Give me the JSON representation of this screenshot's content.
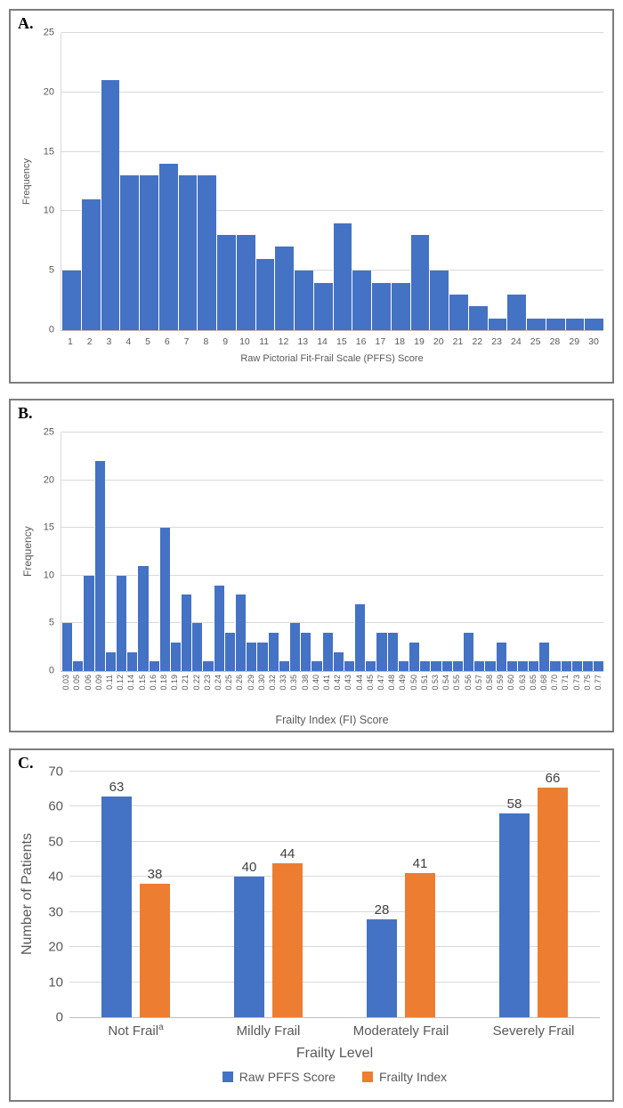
{
  "panels": {
    "a": {
      "label": "A."
    },
    "b": {
      "label": "B."
    },
    "c": {
      "label": "C."
    }
  },
  "colors": {
    "bar_blue": "#4472C4",
    "bar_orange": "#ED7D31",
    "gridline": "#D9D9D9",
    "axis_text": "#595959",
    "panel_border": "#7D7D7D"
  },
  "chart_data": [
    {
      "id": "chartA",
      "panel": "A",
      "type": "bar",
      "title": "",
      "xlabel": "Raw Pictorial Fit-Frail Scale (PFFS) Score",
      "ylabel": "Frequency",
      "ylim": [
        0,
        25
      ],
      "yticks": [
        0,
        5,
        10,
        15,
        20,
        25
      ],
      "grid": true,
      "legend_position": "none",
      "bar_color": "#4472C4",
      "tick_rotation": 0,
      "categories": [
        "1",
        "2",
        "3",
        "4",
        "5",
        "6",
        "7",
        "8",
        "9",
        "10",
        "11",
        "12",
        "13",
        "14",
        "15",
        "16",
        "17",
        "18",
        "19",
        "20",
        "21",
        "22",
        "23",
        "24",
        "25",
        "28",
        "29",
        "30"
      ],
      "values": [
        5,
        11,
        21,
        13,
        13,
        14,
        13,
        13,
        8,
        8,
        6,
        7,
        5,
        4,
        9,
        5,
        4,
        4,
        8,
        5,
        3,
        2,
        1,
        3,
        1,
        1,
        1,
        1
      ]
    },
    {
      "id": "chartB",
      "panel": "B",
      "type": "bar",
      "title": "",
      "xlabel": "Frailty Index (FI) Score",
      "ylabel": "Frequency",
      "ylim": [
        0,
        25
      ],
      "yticks": [
        0,
        5,
        10,
        15,
        20,
        25
      ],
      "grid": true,
      "legend_position": "none",
      "bar_color": "#4472C4",
      "tick_rotation": 90,
      "categories": [
        "0.03",
        "0.05",
        "0.06",
        "0.09",
        "0.11",
        "0.12",
        "0.14",
        "0.15",
        "0.16",
        "0.18",
        "0.19",
        "0.21",
        "0.22",
        "0.23",
        "0.24",
        "0.25",
        "0.26",
        "0.29",
        "0.30",
        "0.32",
        "0.33",
        "0.35",
        "0.38",
        "0.40",
        "0.41",
        "0.42",
        "0.43",
        "0.44",
        "0.45",
        "0.47",
        "0.48",
        "0.49",
        "0.50",
        "0.51",
        "0.53",
        "0.54",
        "0.55",
        "0.56",
        "0.57",
        "0.58",
        "0.59",
        "0.60",
        "0.63",
        "0.65",
        "0.68",
        "0.70",
        "0.71",
        "0.73",
        "0.75",
        "0.77"
      ],
      "values": [
        5,
        1,
        10,
        22,
        2,
        10,
        2,
        11,
        1,
        15,
        3,
        8,
        5,
        1,
        9,
        4,
        8,
        3,
        3,
        4,
        1,
        5,
        4,
        1,
        4,
        2,
        1,
        7,
        1,
        4,
        4,
        1,
        3,
        1,
        1,
        1,
        1,
        4,
        1,
        1,
        3,
        1,
        1,
        1,
        3,
        1,
        1,
        1,
        1,
        1
      ]
    },
    {
      "id": "chartC",
      "panel": "C",
      "type": "bar",
      "grouped": true,
      "title": "",
      "xlabel": "Frailty Level",
      "ylabel": "Number of Patients",
      "ylim": [
        0,
        70
      ],
      "yticks": [
        0,
        10,
        20,
        30,
        40,
        50,
        60,
        70
      ],
      "grid": true,
      "data_labels": true,
      "legend_position": "bottom",
      "tick_rotation": 0,
      "categories": [
        {
          "text": "Not Frail",
          "sup": "a"
        },
        {
          "text": "Mildly Frail"
        },
        {
          "text": "Moderately Frail"
        },
        {
          "text": "Severely Frail"
        }
      ],
      "series": [
        {
          "name": "Raw PFFS Score",
          "color": "#4472C4",
          "values": [
            63,
            40,
            28,
            58
          ]
        },
        {
          "name": "Frailty Index",
          "color": "#ED7D31",
          "values": [
            38,
            44,
            41,
            66
          ]
        }
      ]
    }
  ]
}
